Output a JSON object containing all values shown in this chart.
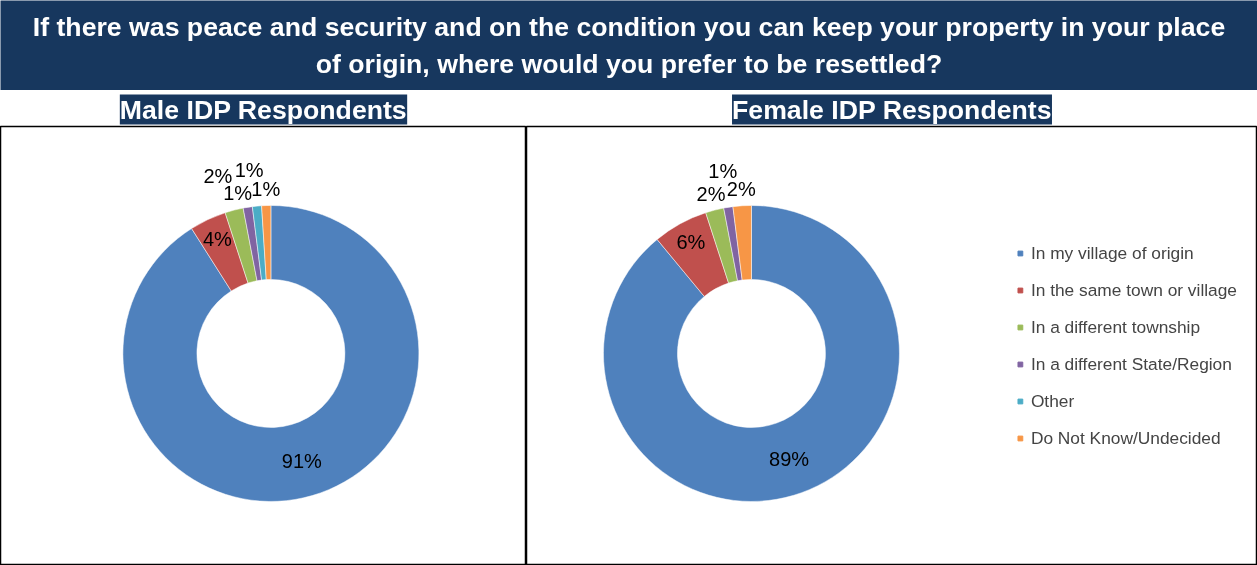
{
  "chart_data": [
    {
      "type": "donut",
      "title": "Male IDP Respondents",
      "annotations": [
        "If there was peace and security and on the condition you can keep your property in your place of origin, where would you prefer to be resettled?"
      ],
      "categories": [
        null,
        null,
        null,
        null,
        null,
        null
      ],
      "values": [
        91,
        4,
        2,
        1,
        1,
        1
      ],
      "value_labels": [
        "91%",
        "4%",
        "2%",
        "1%",
        "1%",
        "1%"
      ],
      "colors": [
        "#4f81bd",
        "#c0504d",
        "#9bbb59",
        "#8064a2",
        "#4bacc6",
        "#f79646"
      ],
      "legend": false
    },
    {
      "type": "donut",
      "title": "Female IDP Respondents",
      "categories": [
        "In my village of origin",
        "In the same town or village",
        "In a different township",
        "In a different State/Region",
        "Other",
        "Do Not Know/Undecided"
      ],
      "values": [
        89,
        6,
        2,
        1,
        0,
        2
      ],
      "value_labels": [
        "89%",
        "6%",
        "2%",
        "1%",
        null,
        "2%"
      ],
      "colors": [
        "#4f81bd",
        "#c0504d",
        "#9bbb59",
        "#8064a2",
        "#4bacc6",
        "#f79646"
      ],
      "legend": "right"
    }
  ]
}
